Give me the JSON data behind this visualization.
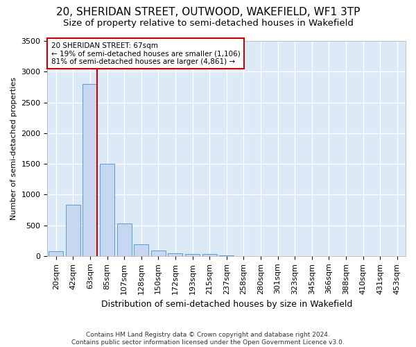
{
  "title1": "20, SHERIDAN STREET, OUTWOOD, WAKEFIELD, WF1 3TP",
  "title2": "Size of property relative to semi-detached houses in Wakefield",
  "xlabel": "Distribution of semi-detached houses by size in Wakefield",
  "ylabel": "Number of semi-detached properties",
  "footer1": "Contains HM Land Registry data © Crown copyright and database right 2024.",
  "footer2": "Contains public sector information licensed under the Open Government Licence v3.0.",
  "categories": [
    "20sqm",
    "42sqm",
    "63sqm",
    "85sqm",
    "107sqm",
    "128sqm",
    "150sqm",
    "172sqm",
    "193sqm",
    "215sqm",
    "237sqm",
    "258sqm",
    "280sqm",
    "301sqm",
    "323sqm",
    "345sqm",
    "366sqm",
    "388sqm",
    "410sqm",
    "431sqm",
    "453sqm"
  ],
  "values": [
    80,
    830,
    2800,
    1500,
    530,
    190,
    85,
    50,
    35,
    28,
    8,
    5,
    3,
    2,
    1,
    1,
    0,
    0,
    0,
    0,
    0
  ],
  "bar_color": "#c5d8f0",
  "bar_edge_color": "#5b9bd5",
  "property_line_bin": 2,
  "annotation_text_line1": "20 SHERIDAN STREET: 67sqm",
  "annotation_text_line2": "← 19% of semi-detached houses are smaller (1,106)",
  "annotation_text_line3": "81% of semi-detached houses are larger (4,861) →",
  "box_color": "#cc0000",
  "ylim": [
    0,
    3500
  ],
  "yticks": [
    0,
    500,
    1000,
    1500,
    2000,
    2500,
    3000,
    3500
  ],
  "grid_color": "#ffffff",
  "bg_color": "#dce9f7",
  "fig_bg": "#ffffff",
  "title1_fontsize": 11,
  "title2_fontsize": 9.5,
  "xlabel_fontsize": 9,
  "ylabel_fontsize": 8,
  "tick_fontsize": 8,
  "annot_fontsize": 7.5,
  "footer_fontsize": 6.5
}
